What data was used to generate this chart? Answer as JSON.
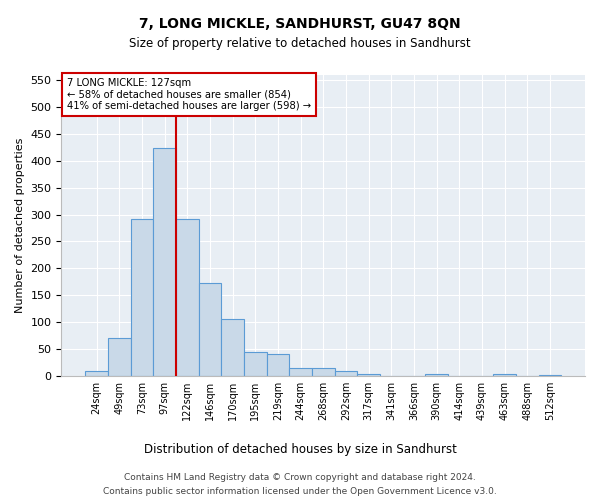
{
  "title": "7, LONG MICKLE, SANDHURST, GU47 8QN",
  "subtitle": "Size of property relative to detached houses in Sandhurst",
  "xlabel": "Distribution of detached houses by size in Sandhurst",
  "ylabel": "Number of detached properties",
  "footer_line1": "Contains HM Land Registry data © Crown copyright and database right 2024.",
  "footer_line2": "Contains public sector information licensed under the Open Government Licence v3.0.",
  "bar_labels": [
    "24sqm",
    "49sqm",
    "73sqm",
    "97sqm",
    "122sqm",
    "146sqm",
    "170sqm",
    "195sqm",
    "219sqm",
    "244sqm",
    "268sqm",
    "292sqm",
    "317sqm",
    "341sqm",
    "366sqm",
    "390sqm",
    "414sqm",
    "439sqm",
    "463sqm",
    "488sqm",
    "512sqm"
  ],
  "bar_values": [
    8,
    70,
    291,
    424,
    291,
    172,
    105,
    44,
    40,
    15,
    15,
    8,
    4,
    0,
    0,
    3,
    0,
    0,
    4,
    0,
    2
  ],
  "bar_color": "#c9d9e8",
  "bar_edge_color": "#5b9bd5",
  "bg_color": "#e8eef4",
  "grid_color": "#ffffff",
  "vline_color": "#cc0000",
  "annotation_line1": "7 LONG MICKLE: 127sqm",
  "annotation_line2": "← 58% of detached houses are smaller (854)",
  "annotation_line3": "41% of semi-detached houses are larger (598) →",
  "annotation_box_color": "#ffffff",
  "annotation_box_edge": "#cc0000",
  "ylim": [
    0,
    560
  ],
  "yticks": [
    0,
    50,
    100,
    150,
    200,
    250,
    300,
    350,
    400,
    450,
    500,
    550
  ]
}
